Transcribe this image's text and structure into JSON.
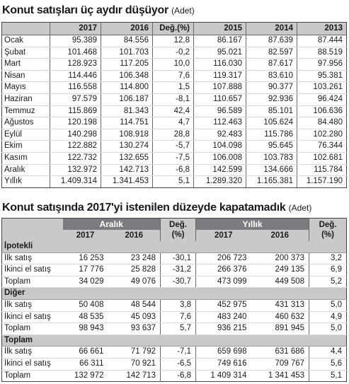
{
  "table1": {
    "title": "Konut satışları üç aydır düşüyor",
    "unit": "(Adet)",
    "headers": [
      "",
      "2017",
      "2016",
      "Değ.(%)",
      "2015",
      "2014",
      "2013"
    ],
    "rows": [
      [
        "Ocak",
        "95.389",
        "84.556",
        "12,8",
        "86.167",
        "87.639",
        "87.444"
      ],
      [
        "Şubat",
        "101.468",
        "101.703",
        "-0,2",
        "95.021",
        "82.597",
        "88.519"
      ],
      [
        "Mart",
        "128.923",
        "117.205",
        "10,0",
        "116.030",
        "87.617",
        "97.956"
      ],
      [
        "Nisan",
        "114.446",
        "106.348",
        "7,6",
        "119.317",
        "83.610",
        "95.381"
      ],
      [
        "Mayıs",
        "116.558",
        "114.800",
        "1,5",
        "107.888",
        "90.377",
        "103.261"
      ],
      [
        "Haziran",
        "97.579",
        "106.187",
        "-8,1",
        "110.657",
        "92.936",
        "96.424"
      ],
      [
        "Temmuz",
        "115.869",
        "81.343",
        "42,4",
        "96.589",
        "85.101",
        "106.636"
      ],
      [
        "Ağustos",
        "120.198",
        "114.751",
        "4,7",
        "112.463",
        "105.624",
        "84.480"
      ],
      [
        "Eylül",
        "140.298",
        "108.918",
        "28,8",
        "92.483",
        "115.786",
        "102.280"
      ],
      [
        "Ekim",
        "122.882",
        "130.274",
        "-5,7",
        "104.098",
        "95.645",
        "76.344"
      ],
      [
        "Kasım",
        "122.732",
        "132.655",
        "-7,5",
        "106.008",
        "103.783",
        "102.681"
      ],
      [
        "Aralık",
        "132.972",
        "142.713",
        "-6,8",
        "142.599",
        "134.666",
        "115.784"
      ],
      [
        "Yıllık",
        "1.409.314",
        "1.341.453",
        "5,1",
        "1.289.320",
        "1.165.381",
        "1.157.190"
      ]
    ]
  },
  "table2": {
    "title": "Konut satışında 2017'yi istenilen düzeyde kapatamadık",
    "unit": "(Adet)",
    "group_aralik": "Aralık",
    "group_yillik": "Yıllık",
    "deg_label": "Değ.",
    "pct_label": "(%)",
    "years": [
      "2017",
      "2016",
      "2017",
      "2016"
    ],
    "sections": [
      {
        "name": "İpotekli",
        "rows": [
          [
            "İlk satış",
            "16 253",
            "23 248",
            "-30,1",
            "206 723",
            "200 373",
            "3,2"
          ],
          [
            "İkinci el satış",
            "17 776",
            "25 828",
            "-31,2",
            "266 376",
            "249 135",
            "6,9"
          ],
          [
            "Toplam",
            "34 029",
            "49 076",
            "-30,7",
            "473 099",
            "449 508",
            "5,2"
          ]
        ]
      },
      {
        "name": "Diğer",
        "rows": [
          [
            "İlk satış",
            "50 408",
            "48 544",
            "3,8",
            "452 975",
            "431 313",
            "5,0"
          ],
          [
            "İkinci el satış",
            "48 535",
            "45 093",
            "7,6",
            "483 240",
            "460 632",
            "4,9"
          ],
          [
            "Toplam",
            "98 943",
            "93 637",
            "5,7",
            "936 215",
            "891 945",
            "5,0"
          ]
        ]
      },
      {
        "name": "Toplam",
        "rows": [
          [
            "İlk satış",
            "66 661",
            "71 792",
            "-7,1",
            "659 698",
            "631 686",
            "4,4"
          ],
          [
            "İkinci el satış",
            "66 311",
            "70 921",
            "-6,5",
            "749 616",
            "709 767",
            "5,6"
          ],
          [
            "Toplam",
            "132 972",
            "142 713",
            "-6,8",
            "1 409 314",
            "1 341 453",
            "5,1"
          ]
        ]
      }
    ]
  }
}
